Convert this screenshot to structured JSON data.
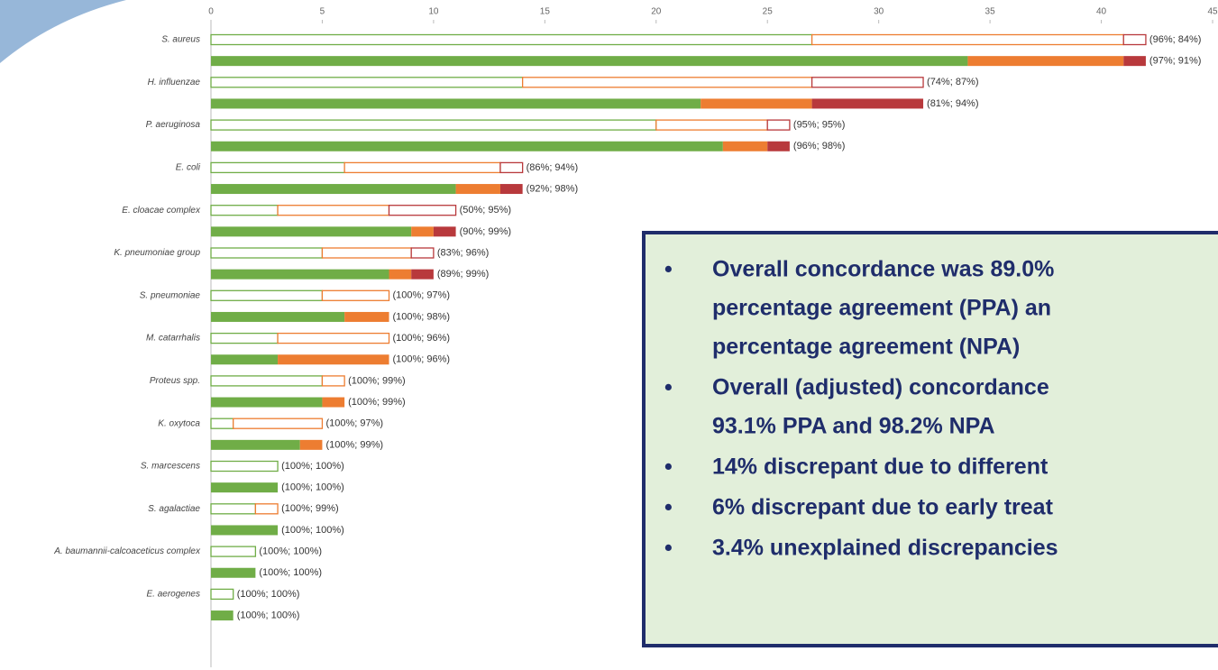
{
  "chart_data": {
    "type": "bar",
    "orientation": "horizontal",
    "stacked": true,
    "row_styles": [
      "outline",
      "solid"
    ],
    "categories": [
      "S. aureus",
      null,
      "H. influenzae",
      null,
      "P. aeruginosa",
      null,
      "E. coli",
      null,
      "E. cloacae complex",
      null,
      "K. pneumoniae group",
      null,
      "S. pneumoniae",
      null,
      "M. catarrhalis",
      null,
      "Proteus spp.",
      null,
      "K. oxytoca",
      null,
      "S. marcescens",
      null,
      "S. agalactiae",
      null,
      "A. baumannii-calcoaceticus complex",
      null,
      "E. aerogenes",
      null
    ],
    "series": [
      {
        "color": "#70ad47",
        "values": [
          27,
          34,
          14,
          22,
          20,
          23,
          6,
          11,
          3,
          9,
          5,
          8,
          5,
          6,
          3,
          3,
          5,
          5,
          1,
          4,
          3,
          3,
          2,
          3,
          2,
          2,
          1,
          1
        ]
      },
      {
        "color": "#ed7d31",
        "values": [
          14,
          7,
          13,
          5,
          5,
          2,
          7,
          2,
          5,
          1,
          4,
          1,
          3,
          2,
          5,
          5,
          1,
          1,
          4,
          1,
          0,
          0,
          1,
          0,
          0,
          0,
          0,
          0
        ]
      },
      {
        "color": "#b8393c",
        "values": [
          1,
          1,
          5,
          5,
          1,
          1,
          1,
          1,
          3,
          1,
          1,
          1,
          0,
          0,
          0,
          0,
          0,
          0,
          0,
          0,
          0,
          0,
          0,
          0,
          0,
          0,
          0,
          0
        ]
      }
    ],
    "annotations": [
      "(96%; 84%)",
      "(97%; 91%)",
      "(74%; 87%)",
      "(81%; 94%)",
      "(95%; 95%)",
      "(96%; 98%)",
      "(86%; 94%)",
      "(92%; 98%)",
      "(50%; 95%)",
      "(90%; 99%)",
      "(83%; 96%)",
      "(89%; 99%)",
      "(100%; 97%)",
      "(100%; 98%)",
      "(100%; 96%)",
      "(100%; 96%)",
      "(100%; 99%)",
      "(100%; 99%)",
      "(100%; 97%)",
      "(100%; 99%)",
      "(100%; 100%)",
      "(100%; 100%)",
      "(100%; 99%)",
      "(100%; 100%)",
      "(100%; 100%)",
      "(100%; 100%)",
      "(100%; 100%)",
      "(100%; 100%)"
    ],
    "xlim": [
      0,
      45
    ],
    "xticks": [
      0,
      5,
      10,
      15,
      20,
      25,
      30,
      35,
      40,
      45
    ]
  },
  "text_box": {
    "bullets": [
      [
        "Overall concordance was 89.0%",
        "percentage agreement (PPA) an",
        "percentage agreement (NPA)"
      ],
      [
        "Overall (adjusted) concordance",
        "93.1% PPA and 98.2% NPA"
      ],
      [
        "14% discrepant due to different"
      ],
      [
        "6% discrepant due to early treat"
      ],
      [
        "3.4% unexplained discrepancies"
      ]
    ]
  }
}
